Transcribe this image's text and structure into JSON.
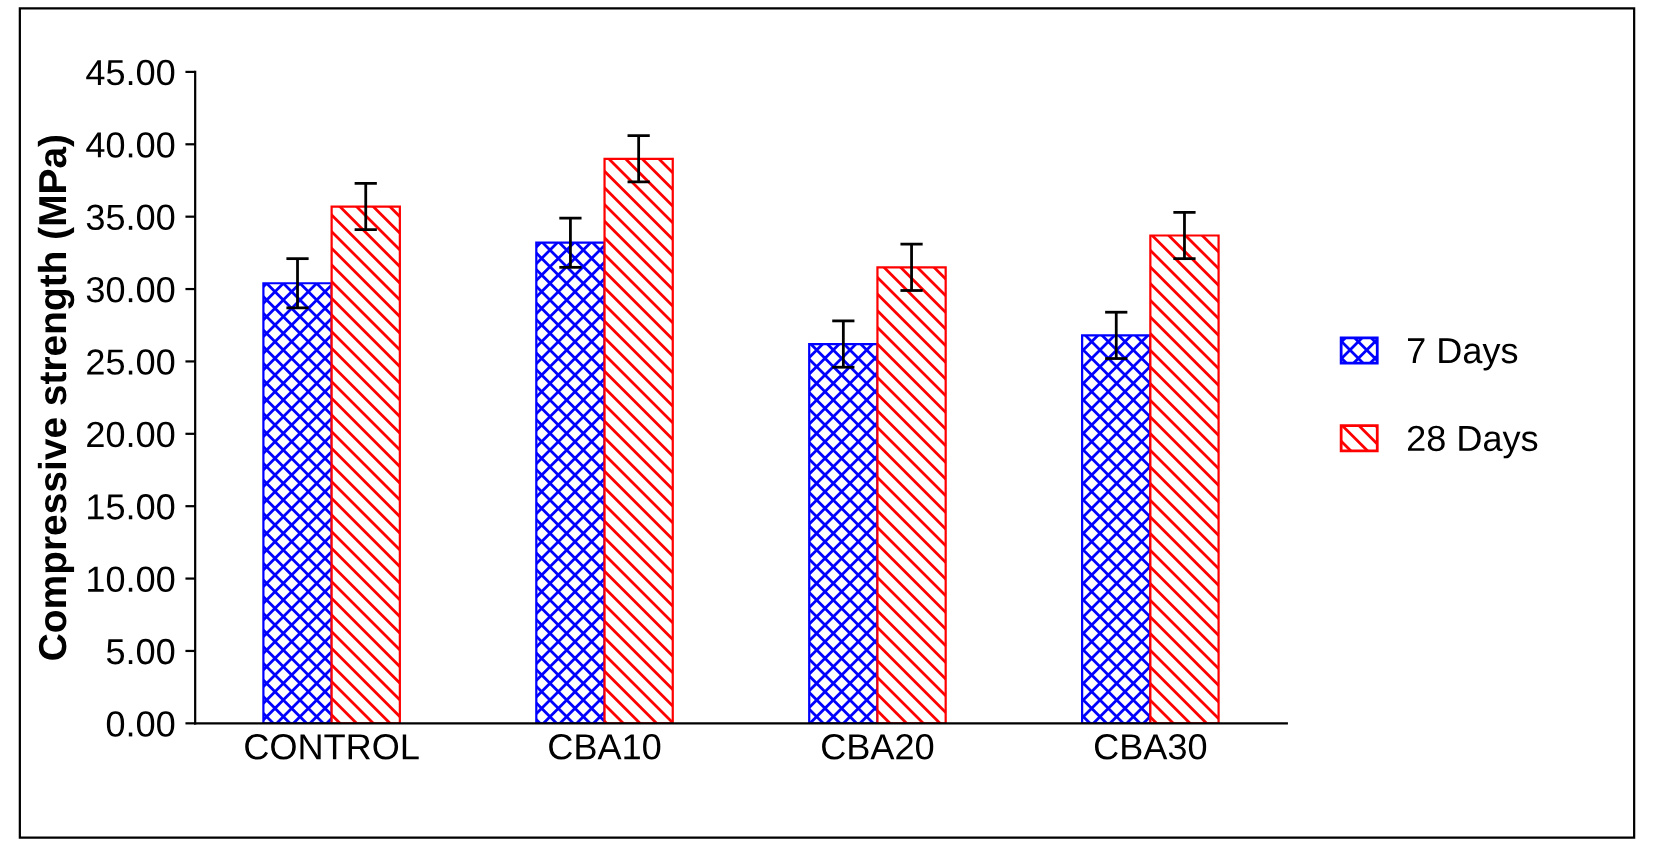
{
  "chart_data": {
    "type": "bar",
    "ylabel": "Compressive strength (MPa)",
    "categories": [
      "CONTROL",
      "CBA10",
      "CBA20",
      "CBA30"
    ],
    "series": [
      {
        "name": "7 Days",
        "color": "#0000ff",
        "values": [
          30.4,
          33.2,
          26.2,
          26.8
        ],
        "errors": [
          1.7,
          1.7,
          1.6,
          1.6
        ]
      },
      {
        "name": "28 Days",
        "color": "#ff0000",
        "values": [
          35.7,
          39.0,
          31.5,
          33.7
        ],
        "errors": [
          1.6,
          1.6,
          1.6,
          1.6
        ]
      }
    ],
    "ylim": [
      0,
      45
    ],
    "yticks": [
      {
        "value": 0,
        "label": "0.00"
      },
      {
        "value": 5,
        "label": "5.00"
      },
      {
        "value": 10,
        "label": "10.00"
      },
      {
        "value": 15,
        "label": "15.00"
      },
      {
        "value": 20,
        "label": "20.00"
      },
      {
        "value": 25,
        "label": "25.00"
      },
      {
        "value": 30,
        "label": "30.00"
      },
      {
        "value": 35,
        "label": "35.00"
      },
      {
        "value": 40,
        "label": "40.00"
      },
      {
        "value": 45,
        "label": "45.00"
      }
    ],
    "grid": false,
    "legend": "right"
  }
}
